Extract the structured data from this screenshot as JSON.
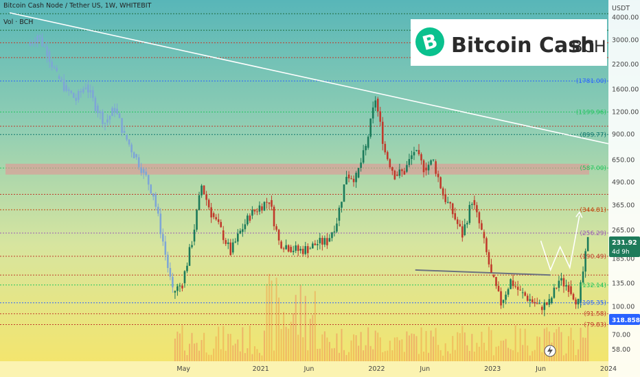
{
  "header": {
    "symbol_line": "Bitcoin Cash Node / Tether US, 1W, WHITEBIT",
    "volume_line": "Vol · BCH"
  },
  "logo": {
    "name": "Bitcoin Cash",
    "ticker": "BCH",
    "icon": "bitcoin-b-icon",
    "color": "#0AC18E"
  },
  "currency_label": "USDT",
  "price_badge": {
    "price": "231.92",
    "countdown": "4d 9h",
    "color": "#1e7b5a"
  },
  "volume_badge": {
    "value": "318.858K",
    "color": "#2962ff"
  },
  "lightning_icon": "lightning-icon",
  "chart_data": {
    "type": "candlestick",
    "scale": "log",
    "ylim": [
      50,
      5000
    ],
    "xlim": [
      "2020-01",
      "2024-01"
    ],
    "y_ticks": [
      {
        "value": 4000,
        "label": "4000.00"
      },
      {
        "value": 3000,
        "label": "3000.00"
      },
      {
        "value": 2200,
        "label": "2200.00"
      },
      {
        "value": 1600,
        "label": "1600.00"
      },
      {
        "value": 1200,
        "label": "1200.00"
      },
      {
        "value": 900,
        "label": "900.00"
      },
      {
        "value": 650,
        "label": "650.00"
      },
      {
        "value": 490,
        "label": "490.00"
      },
      {
        "value": 365,
        "label": "365.00"
      },
      {
        "value": 265,
        "label": "265.00"
      },
      {
        "value": 185,
        "label": "185.00"
      },
      {
        "value": 135,
        "label": "135.00"
      },
      {
        "value": 100,
        "label": "100.00"
      },
      {
        "value": 70,
        "label": "70.00"
      },
      {
        "value": 58,
        "label": "58.00"
      }
    ],
    "x_ticks": [
      {
        "date": "2020-05",
        "label": "May"
      },
      {
        "date": "2021-01",
        "label": "2021"
      },
      {
        "date": "2021-06",
        "label": "Jun"
      },
      {
        "date": "2022-01",
        "label": "2022"
      },
      {
        "date": "2022-06",
        "label": "Jun"
      },
      {
        "date": "2023-01",
        "label": "2023"
      },
      {
        "date": "2023-06",
        "label": "Jun"
      },
      {
        "date": "2024-01",
        "label": "2024"
      }
    ],
    "levels": [
      {
        "value": 1781.0,
        "label": "(1781.00)",
        "color": "#2962ff"
      },
      {
        "value": 1199.96,
        "label": "(1199.96)",
        "color": "#22c55e"
      },
      {
        "value": 899.77,
        "label": "(899.77)",
        "color": "#0f766e"
      },
      {
        "value": 587.0,
        "label": "(587.00)",
        "color": "#22c55e"
      },
      {
        "value": 344.81,
        "label": "(344.81)",
        "color": "#c2410c"
      },
      {
        "value": 256.29,
        "label": "(256.29)",
        "color": "#9b59b6"
      },
      {
        "value": 190.49,
        "label": "(190.49)",
        "color": "#c0392b"
      },
      {
        "value": 132.14,
        "label": "(132.14)",
        "color": "#22c55e"
      },
      {
        "value": 105.35,
        "label": "(105.35)",
        "color": "#2962ff"
      },
      {
        "value": 91.58,
        "label": "(91.58)",
        "color": "#c0392b"
      },
      {
        "value": 79.83,
        "label": "(79.83)",
        "color": "#c0392b"
      }
    ],
    "extra_levels": [
      {
        "value": 2900,
        "color": "#c0392b"
      },
      {
        "value": 2400,
        "color": "#c0392b"
      },
      {
        "value": 4200,
        "color": "#1e6b3a"
      },
      {
        "value": 3400,
        "color": "#1e6b3a"
      },
      {
        "value": 1000,
        "color": "#c0392b"
      },
      {
        "value": 420,
        "color": "#c0392b"
      },
      {
        "value": 150,
        "color": "#c0392b"
      }
    ],
    "resistance_zone": [
      540,
      620
    ],
    "trendlines": [
      {
        "from": {
          "date": "2018-11",
          "price": 4250
        },
        "to": {
          "date": "2024-01",
          "price": 800
        },
        "color": "#ffffff"
      },
      {
        "from": {
          "date": "2022-05",
          "price": 160
        },
        "to": {
          "date": "2023-07",
          "price": 150
        },
        "color": "#6b7280"
      }
    ],
    "projection": [
      {
        "date": "2023-06",
        "price": 232
      },
      {
        "date": "2023-07",
        "price": 160
      },
      {
        "date": "2023-08",
        "price": 215
      },
      {
        "date": "2023-09",
        "price": 165
      },
      {
        "date": "2023-10",
        "price": 320
      }
    ],
    "series": [
      {
        "name": "BCHUSDT",
        "points": [
          {
            "date": "2019-01",
            "close": 2800
          },
          {
            "date": "2019-02",
            "close": 3200
          },
          {
            "date": "2019-03",
            "close": 2600
          },
          {
            "date": "2019-04",
            "close": 1900
          },
          {
            "date": "2019-05",
            "close": 1600
          },
          {
            "date": "2019-06",
            "close": 1400
          },
          {
            "date": "2019-07",
            "close": 1700
          },
          {
            "date": "2019-08",
            "close": 1300
          },
          {
            "date": "2019-09",
            "close": 1050
          },
          {
            "date": "2019-10",
            "close": 1250
          },
          {
            "date": "2019-11",
            "close": 900
          },
          {
            "date": "2019-12",
            "close": 700
          },
          {
            "date": "2020-01",
            "close": 560
          },
          {
            "date": "2020-02",
            "close": 420
          },
          {
            "date": "2020-03",
            "close": 230
          },
          {
            "date": "2020-04",
            "close": 120
          },
          {
            "date": "2020-05",
            "close": 135
          },
          {
            "date": "2020-06",
            "close": 230
          },
          {
            "date": "2020-07",
            "close": 470
          },
          {
            "date": "2020-08",
            "close": 330
          },
          {
            "date": "2020-09",
            "close": 265
          },
          {
            "date": "2020-10",
            "close": 200
          },
          {
            "date": "2020-11",
            "close": 260
          },
          {
            "date": "2020-12",
            "close": 320
          },
          {
            "date": "2021-01",
            "close": 360
          },
          {
            "date": "2021-02",
            "close": 390
          },
          {
            "date": "2021-03",
            "close": 230
          },
          {
            "date": "2021-04",
            "close": 215
          },
          {
            "date": "2021-05",
            "close": 205
          },
          {
            "date": "2021-06",
            "close": 210
          },
          {
            "date": "2021-07",
            "close": 225
          },
          {
            "date": "2021-08",
            "close": 230
          },
          {
            "date": "2021-09",
            "close": 300
          },
          {
            "date": "2021-10",
            "close": 540
          },
          {
            "date": "2021-11",
            "close": 520
          },
          {
            "date": "2021-12",
            "close": 760
          },
          {
            "date": "2022-01",
            "close": 1420
          },
          {
            "date": "2022-02",
            "close": 720
          },
          {
            "date": "2022-03",
            "close": 540
          },
          {
            "date": "2022-04",
            "close": 560
          },
          {
            "date": "2022-05",
            "close": 730
          },
          {
            "date": "2022-06",
            "close": 590
          },
          {
            "date": "2022-07",
            "close": 640
          },
          {
            "date": "2022-08",
            "close": 420
          },
          {
            "date": "2022-09",
            "close": 330
          },
          {
            "date": "2022-10",
            "close": 250
          },
          {
            "date": "2022-11",
            "close": 390
          },
          {
            "date": "2022-12",
            "close": 260
          },
          {
            "date": "2023-01",
            "close": 150
          },
          {
            "date": "2023-02",
            "close": 105
          },
          {
            "date": "2023-03",
            "close": 140
          },
          {
            "date": "2023-04",
            "close": 120
          },
          {
            "date": "2023-05",
            "close": 110
          },
          {
            "date": "2023-06",
            "close": 100
          },
          {
            "date": "2023-07",
            "close": 105
          },
          {
            "date": "2023-08",
            "close": 140
          },
          {
            "date": "2023-09",
            "close": 130
          },
          {
            "date": "2023-10",
            "close": 105
          },
          {
            "date": "2023-11",
            "close": 232
          }
        ]
      }
    ]
  }
}
